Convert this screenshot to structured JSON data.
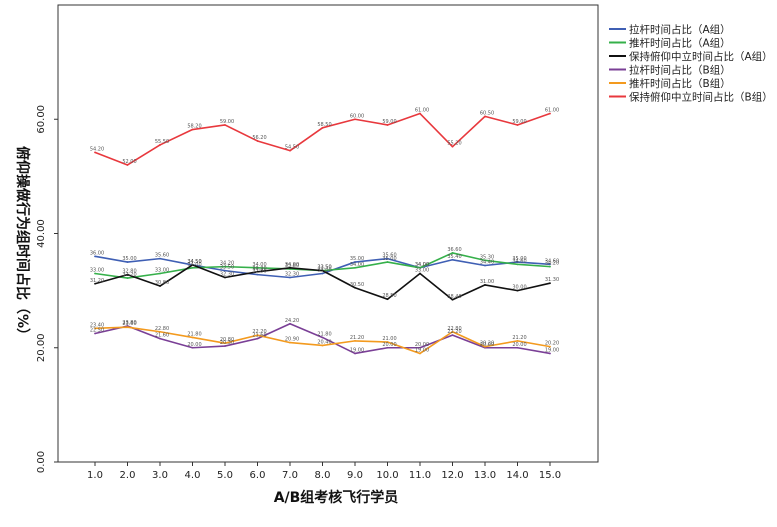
{
  "chart_data": {
    "type": "line",
    "xlabel": "A/B组考核飞行学员",
    "ylabel": "俯仰操做行为组时间占比（%）",
    "x": [
      "1.0",
      "2.0",
      "3.0",
      "4.0",
      "5.0",
      "6.0",
      "7.0",
      "8.0",
      "9.0",
      "10.0",
      "11.0",
      "12.0",
      "13.0",
      "14.0",
      "15.0"
    ],
    "ylim": [
      0,
      80
    ],
    "yticks": [
      "0.00",
      "20.00",
      "40.00",
      "60.00"
    ],
    "grid": false,
    "legend_position": "right",
    "series": [
      {
        "name": "拉杆时间占比（A组）",
        "color": "#3f5fb4",
        "values": [
          36.0,
          35.0,
          35.6,
          34.5,
          33.5,
          32.8,
          32.3,
          33.0,
          35.0,
          35.6,
          34.0,
          35.4,
          34.4,
          35.0,
          34.6
        ]
      },
      {
        "name": "推杆时间占比（A组）",
        "color": "#35b04a",
        "values": [
          33.0,
          32.2,
          33.0,
          34.0,
          34.2,
          34.0,
          33.8,
          33.5,
          34.0,
          35.0,
          34.0,
          36.6,
          35.3,
          34.6,
          34.2
        ]
      },
      {
        "name": "保持俯仰中立时间占比（A组）",
        "color": "#111111",
        "values": [
          31.2,
          32.8,
          30.8,
          34.5,
          32.3,
          33.3,
          34.0,
          33.5,
          30.5,
          28.5,
          33.0,
          28.4,
          31.0,
          30.0,
          31.3
        ]
      },
      {
        "name": "拉杆时间占比（B组）",
        "color": "#7a3f96",
        "values": [
          22.5,
          23.8,
          21.6,
          20.0,
          20.3,
          21.6,
          24.2,
          21.8,
          19.0,
          20.0,
          20.0,
          22.2,
          20.0,
          20.0,
          19.0
        ]
      },
      {
        "name": "推杆时间占比（B组）",
        "color": "#f39a1e",
        "values": [
          23.4,
          23.6,
          22.8,
          21.8,
          20.8,
          22.2,
          20.9,
          20.4,
          21.2,
          21.0,
          19.0,
          22.8,
          20.2,
          21.2,
          20.2
        ]
      },
      {
        "name": "保持俯仰中立时间占比（B组）",
        "color": "#e8383d",
        "values": [
          54.2,
          52.0,
          55.5,
          58.2,
          59.0,
          56.2,
          54.5,
          58.5,
          60.0,
          59.0,
          61.0,
          55.2,
          60.5,
          59.0,
          61.0
        ]
      }
    ]
  }
}
